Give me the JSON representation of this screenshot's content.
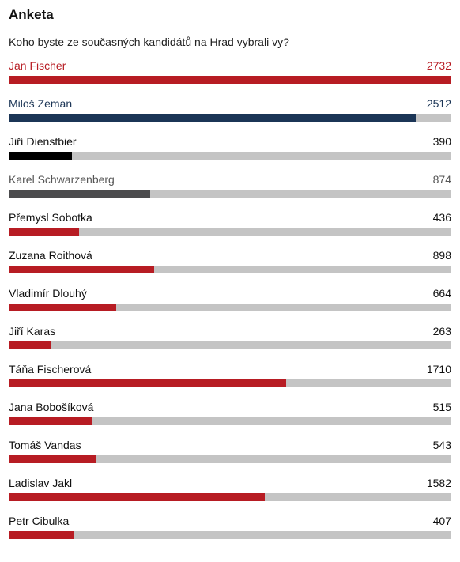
{
  "poll": {
    "title": "Anketa",
    "question": "Koho byste ze současných kandidátů na Hrad vybrali vy?",
    "max_votes": 2732,
    "options": [
      {
        "name": "Jan Fischer",
        "votes": "2732",
        "value": 2732,
        "bar_color": "#b71c23",
        "text_color": "#b71c23"
      },
      {
        "name": "Miloš Zeman",
        "votes": "2512",
        "value": 2512,
        "bar_color": "#1b3556",
        "text_color": "#1b3556"
      },
      {
        "name": "Jiří Dienstbier",
        "votes": "390",
        "value": 390,
        "bar_color": "#000000",
        "text_color": "#111111"
      },
      {
        "name": "Karel Schwarzenberg",
        "votes": "874",
        "value": 874,
        "bar_color": "#4b4b4d",
        "text_color": "#555555"
      },
      {
        "name": "Přemysl Sobotka",
        "votes": "436",
        "value": 436,
        "bar_color": "#b71c23",
        "text_color": "#111111"
      },
      {
        "name": "Zuzana Roithová",
        "votes": "898",
        "value": 898,
        "bar_color": "#b71c23",
        "text_color": "#111111"
      },
      {
        "name": "Vladimír Dlouhý",
        "votes": "664",
        "value": 664,
        "bar_color": "#b71c23",
        "text_color": "#111111"
      },
      {
        "name": "Jiří Karas",
        "votes": "263",
        "value": 263,
        "bar_color": "#b71c23",
        "text_color": "#111111"
      },
      {
        "name": "Táňa Fischerová",
        "votes": "1710",
        "value": 1710,
        "bar_color": "#b71c23",
        "text_color": "#111111"
      },
      {
        "name": "Jana Bobošíková",
        "votes": "515",
        "value": 515,
        "bar_color": "#b71c23",
        "text_color": "#111111"
      },
      {
        "name": "Tomáš Vandas",
        "votes": "543",
        "value": 543,
        "bar_color": "#b71c23",
        "text_color": "#111111"
      },
      {
        "name": "Ladislav Jakl",
        "votes": "1582",
        "value": 1582,
        "bar_color": "#b71c23",
        "text_color": "#111111"
      },
      {
        "name": "Petr Cibulka",
        "votes": "407",
        "value": 407,
        "bar_color": "#b71c23",
        "text_color": "#111111"
      }
    ]
  },
  "colors": {
    "track": "#c4c4c4",
    "accent_red": "#b71c23",
    "accent_navy": "#1b3556"
  }
}
